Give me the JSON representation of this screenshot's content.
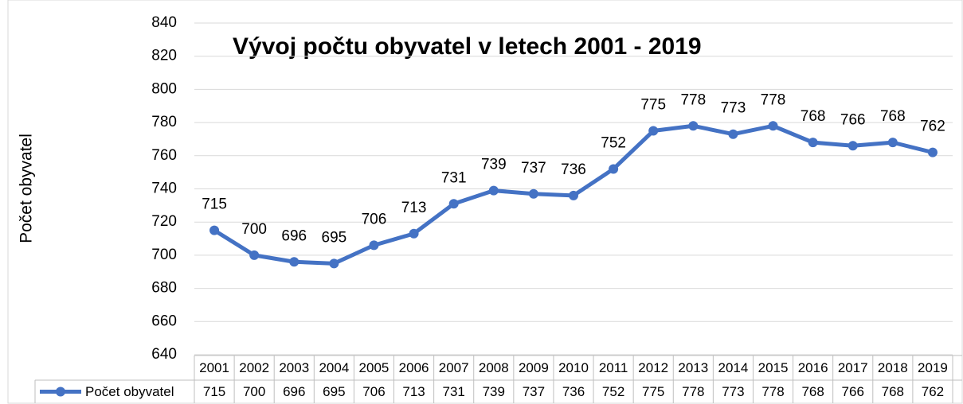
{
  "chart_data": {
    "type": "line",
    "title": "Vývoj počtu obyvatel v letech 2001 - 2019",
    "y_label": "Počet obyvatel",
    "categories": [
      "2001",
      "2002",
      "2003",
      "2004",
      "2005",
      "2006",
      "2007",
      "2008",
      "2009",
      "2010",
      "2011",
      "2012",
      "2013",
      "2014",
      "2015",
      "2016",
      "2017",
      "2018",
      "2019"
    ],
    "series": [
      {
        "name": "Počet obyvatel",
        "color": "#4472c4",
        "values": [
          715,
          700,
          696,
          695,
          706,
          713,
          731,
          739,
          737,
          736,
          752,
          775,
          778,
          773,
          778,
          768,
          766,
          768,
          762
        ]
      }
    ],
    "ylim": [
      640,
      840
    ],
    "yticks": [
      640,
      660,
      680,
      700,
      720,
      740,
      760,
      780,
      800,
      820,
      840
    ],
    "grid": true,
    "data_table": true
  }
}
